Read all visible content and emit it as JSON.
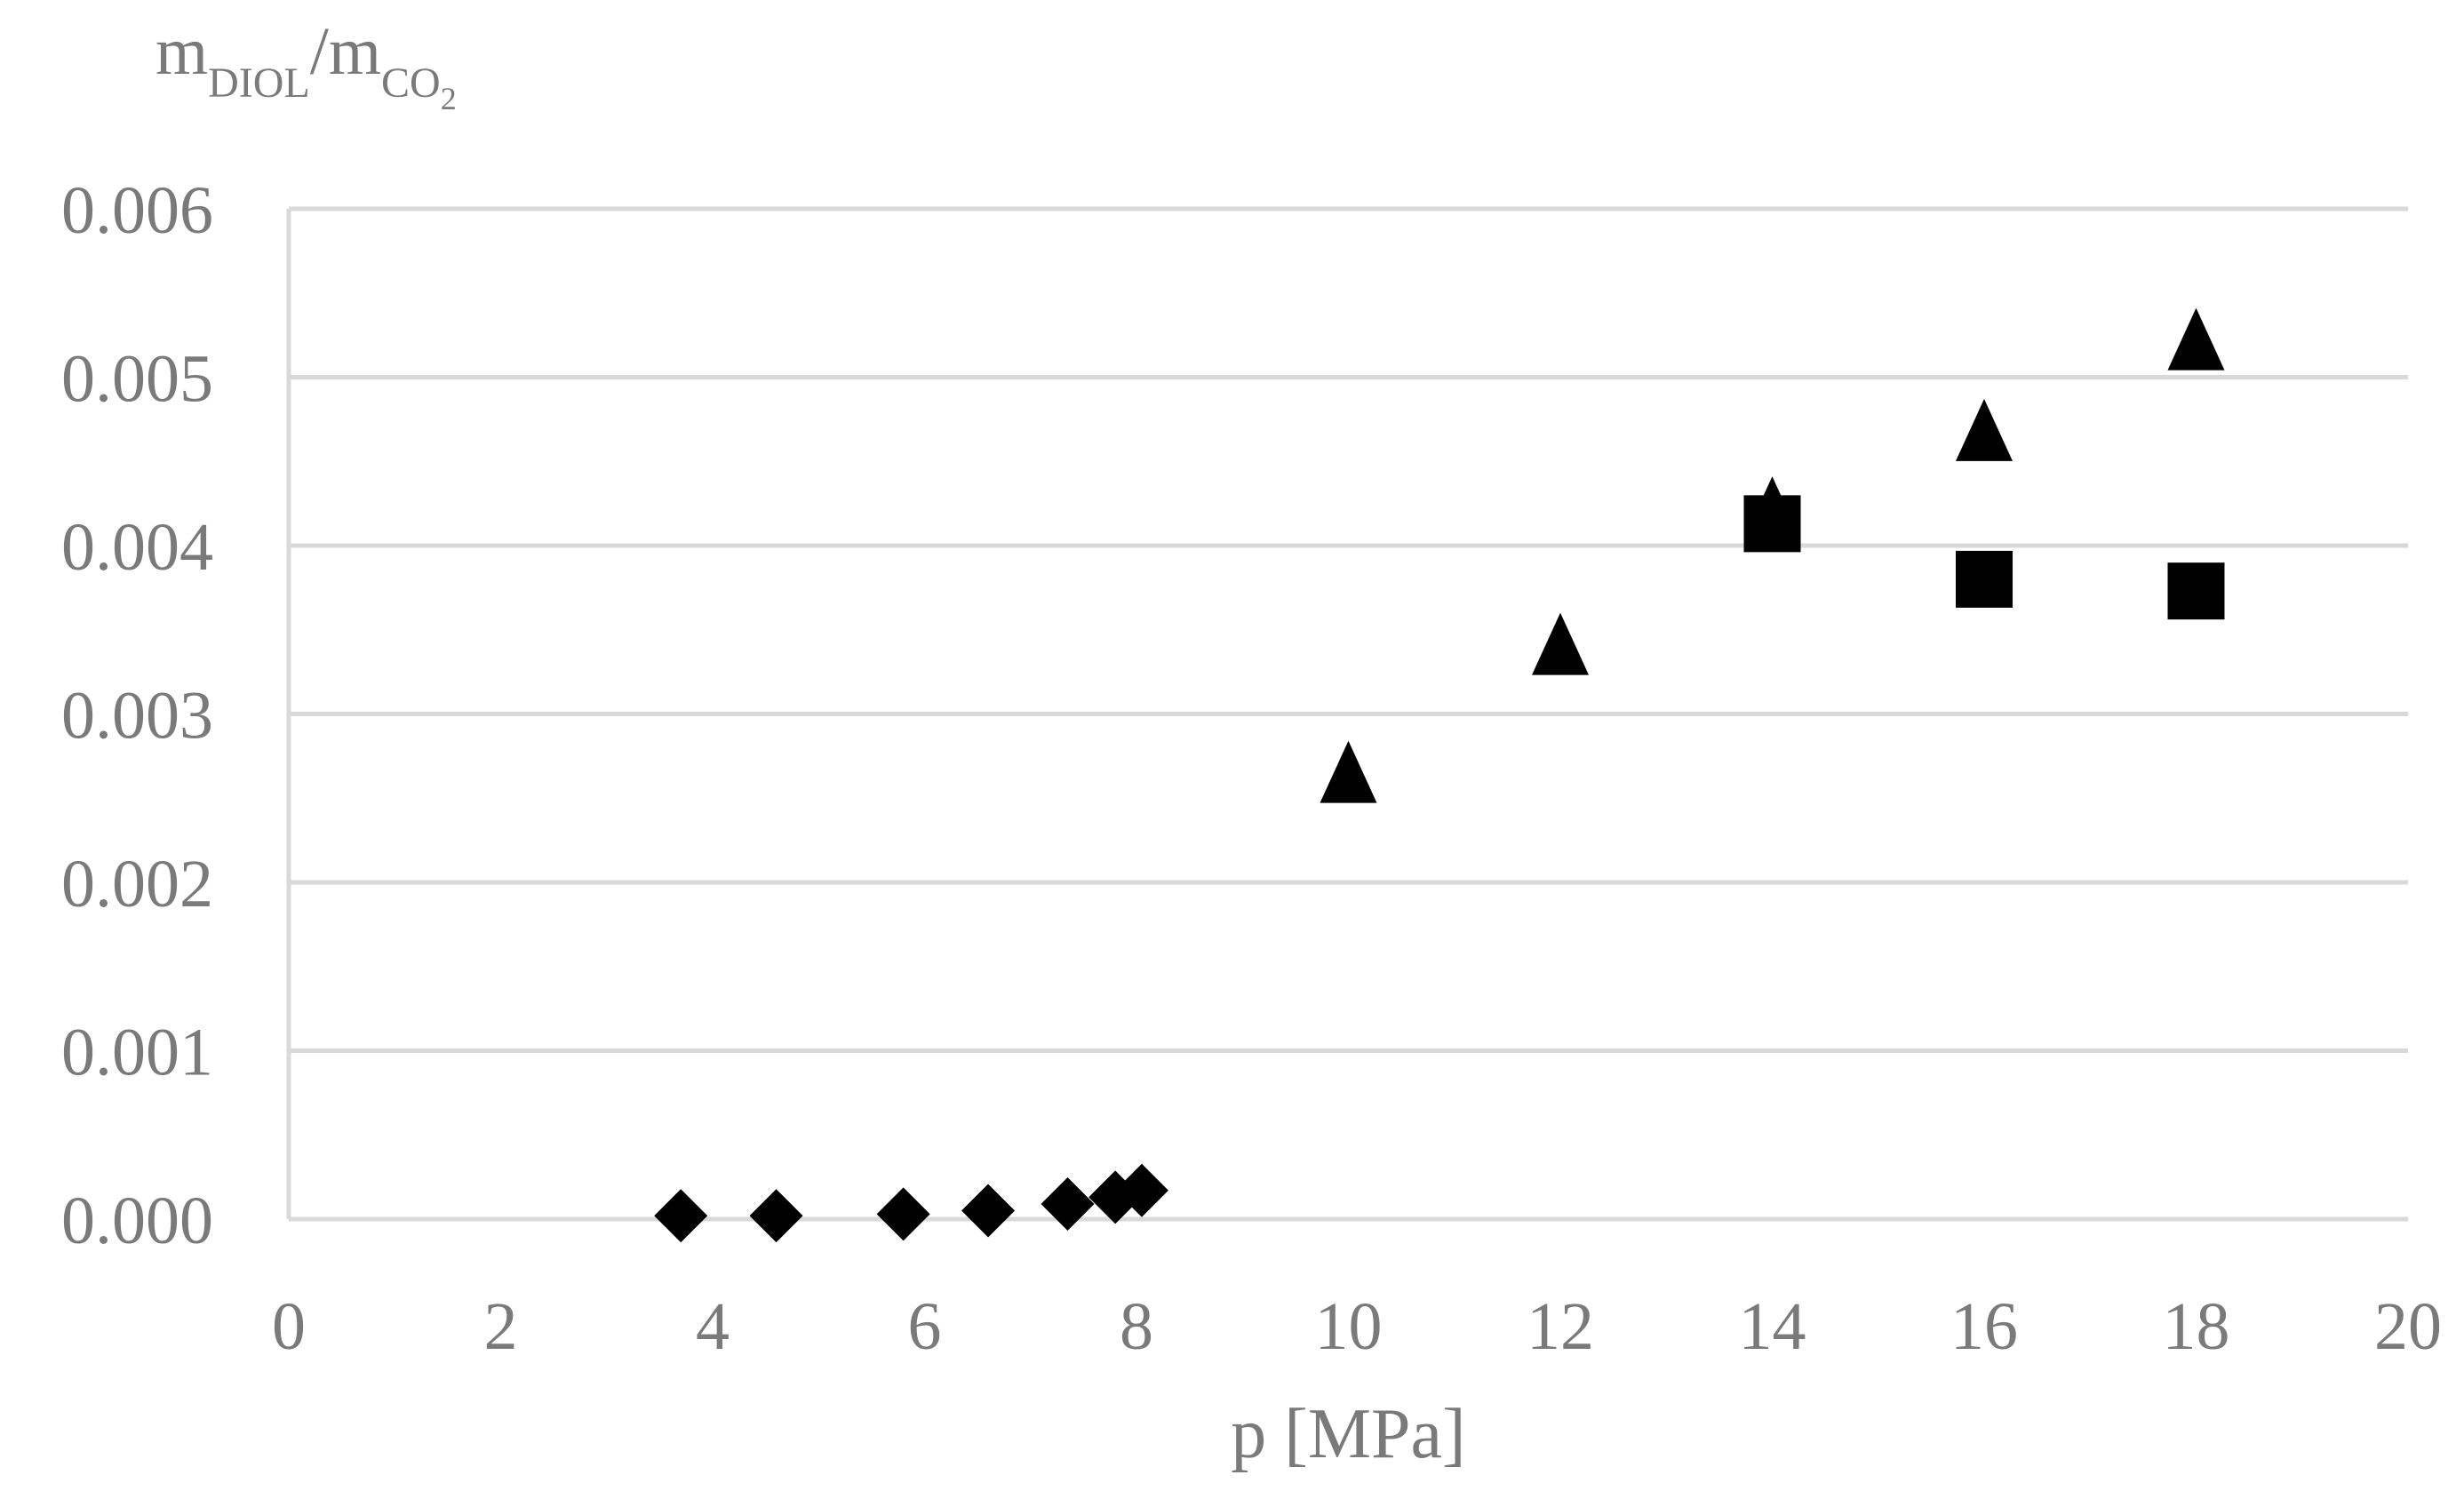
{
  "chart_data": {
    "type": "scatter",
    "title": "",
    "ylabel": {
      "main": "m",
      "sub1": "DIOL",
      "slash": "/m",
      "sub2": "CO",
      "sub2_index": "2"
    },
    "xlabel": "p [MPa]",
    "xlim": [
      0,
      20
    ],
    "ylim": [
      0,
      0.006
    ],
    "xticks": [
      "0",
      "2",
      "4",
      "6",
      "8",
      "10",
      "12",
      "14",
      "16",
      "18",
      "20"
    ],
    "yticks": [
      "0.000",
      "0.001",
      "0.002",
      "0.003",
      "0.004",
      "0.005",
      "0.006"
    ],
    "grid": "horizontal",
    "legend": "none",
    "series": [
      {
        "marker": "diamond",
        "color": "#000000",
        "points": [
          {
            "x": 3.7,
            "y": 2e-05
          },
          {
            "x": 4.6,
            "y": 2e-05
          },
          {
            "x": 5.8,
            "y": 3e-05
          },
          {
            "x": 6.6,
            "y": 5e-05
          },
          {
            "x": 7.35,
            "y": 9e-05
          },
          {
            "x": 7.8,
            "y": 0.00013
          },
          {
            "x": 8.05,
            "y": 0.00017
          }
        ]
      },
      {
        "marker": "triangle",
        "color": "#000000",
        "points": [
          {
            "x": 10,
            "y": 0.00263
          },
          {
            "x": 12,
            "y": 0.00339
          },
          {
            "x": 14,
            "y": 0.0042
          },
          {
            "x": 16,
            "y": 0.00466
          },
          {
            "x": 18,
            "y": 0.0052
          }
        ]
      },
      {
        "marker": "square",
        "color": "#000000",
        "points": [
          {
            "x": 14,
            "y": 0.00413
          },
          {
            "x": 16,
            "y": 0.0038
          },
          {
            "x": 18,
            "y": 0.00373
          }
        ]
      }
    ]
  },
  "colors": {
    "grid": "#d9d9d9",
    "axis": "#d9d9d9",
    "tick_text": "#7a7a7a",
    "marker": "#000000"
  }
}
